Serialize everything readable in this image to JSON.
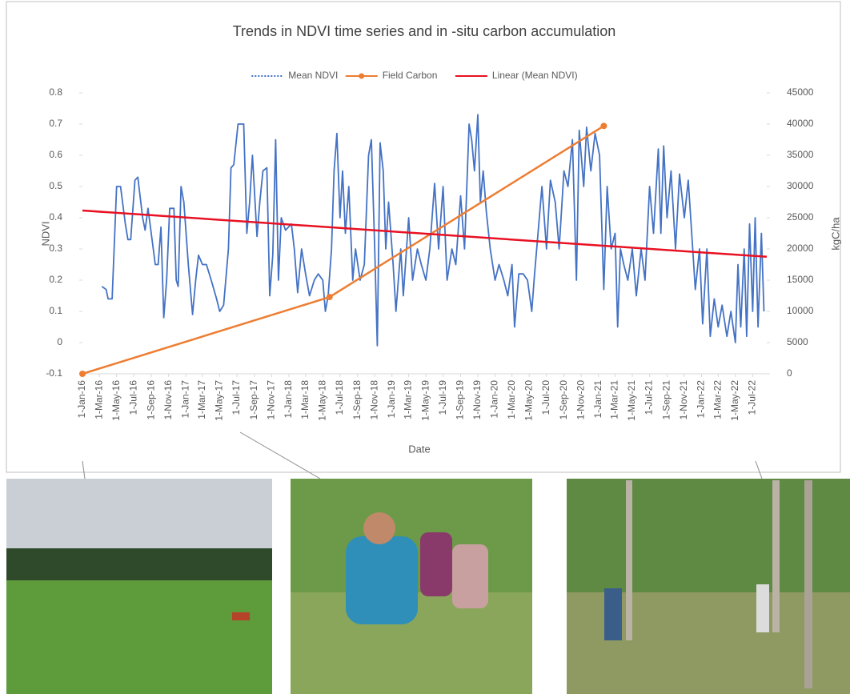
{
  "chart_data": {
    "type": "line",
    "title": "Trends in NDVI time series and in -situ carbon accumulation",
    "xlabel": "Date",
    "ylabel": "NDVI",
    "y2label": "kgC/ha",
    "legend": "top",
    "grid": false,
    "xlim": [
      "2016-01-01",
      "2022-08-20"
    ],
    "xticks": [
      {
        "value": "2016-01-01",
        "label": "1-Jan-16"
      },
      {
        "value": "2016-03-01",
        "label": "1-Mar-16"
      },
      {
        "value": "2016-05-01",
        "label": "1-May-16"
      },
      {
        "value": "2016-07-01",
        "label": "1-Jul-16"
      },
      {
        "value": "2016-09-01",
        "label": "1-Sep-16"
      },
      {
        "value": "2016-11-01",
        "label": "1-Nov-16"
      },
      {
        "value": "2017-01-01",
        "label": "1-Jan-17"
      },
      {
        "value": "2017-03-01",
        "label": "1-Mar-17"
      },
      {
        "value": "2017-05-01",
        "label": "1-May-17"
      },
      {
        "value": "2017-07-01",
        "label": "1-Jul-17"
      },
      {
        "value": "2017-09-01",
        "label": "1-Sep-17"
      },
      {
        "value": "2017-11-01",
        "label": "1-Nov-17"
      },
      {
        "value": "2018-01-01",
        "label": "1-Jan-18"
      },
      {
        "value": "2018-03-01",
        "label": "1-Mar-18"
      },
      {
        "value": "2018-05-01",
        "label": "1-May-18"
      },
      {
        "value": "2018-07-01",
        "label": "1-Jul-18"
      },
      {
        "value": "2018-09-01",
        "label": "1-Sep-18"
      },
      {
        "value": "2018-11-01",
        "label": "1-Nov-18"
      },
      {
        "value": "2019-01-01",
        "label": "1-Jan-19"
      },
      {
        "value": "2019-03-01",
        "label": "1-Mar-19"
      },
      {
        "value": "2019-05-01",
        "label": "1-May-19"
      },
      {
        "value": "2019-07-01",
        "label": "1-Jul-19"
      },
      {
        "value": "2019-09-01",
        "label": "1-Sep-19"
      },
      {
        "value": "2019-11-01",
        "label": "1-Nov-19"
      },
      {
        "value": "2020-01-01",
        "label": "1-Jan-20"
      },
      {
        "value": "2020-03-01",
        "label": "1-Mar-20"
      },
      {
        "value": "2020-05-01",
        "label": "1-May-20"
      },
      {
        "value": "2020-07-01",
        "label": "1-Jul-20"
      },
      {
        "value": "2020-09-01",
        "label": "1-Sep-20"
      },
      {
        "value": "2020-11-01",
        "label": "1-Nov-20"
      },
      {
        "value": "2021-01-01",
        "label": "1-Jan-21"
      },
      {
        "value": "2021-03-01",
        "label": "1-Mar-21"
      },
      {
        "value": "2021-05-01",
        "label": "1-May-21"
      },
      {
        "value": "2021-07-01",
        "label": "1-Jul-21"
      },
      {
        "value": "2021-09-01",
        "label": "1-Sep-21"
      },
      {
        "value": "2021-11-01",
        "label": "1-Nov-21"
      },
      {
        "value": "2022-01-01",
        "label": "1-Jan-22"
      },
      {
        "value": "2022-03-01",
        "label": "1-Mar-22"
      },
      {
        "value": "2022-05-01",
        "label": "1-May-22"
      },
      {
        "value": "2022-07-01",
        "label": "1-Jul-22"
      }
    ],
    "ylim": [
      -0.1,
      0.8
    ],
    "yticks": [
      -0.1,
      0,
      0.1,
      0.2,
      0.3,
      0.4,
      0.5,
      0.6,
      0.7,
      0.8
    ],
    "y2lim": [
      0,
      45000
    ],
    "y2ticks": [
      0,
      5000,
      10000,
      15000,
      20000,
      25000,
      30000,
      35000,
      40000,
      45000
    ],
    "series": [
      {
        "name": "Mean NDVI",
        "color": "#4472c4",
        "x": [
          "2016-03-10",
          "2016-03-25",
          "2016-04-01",
          "2016-04-15",
          "2016-05-01",
          "2016-05-15",
          "2016-06-01",
          "2016-06-10",
          "2016-06-20",
          "2016-07-05",
          "2016-07-15",
          "2016-08-01",
          "2016-08-10",
          "2016-08-20",
          "2016-09-05",
          "2016-09-15",
          "2016-09-25",
          "2016-10-05",
          "2016-10-15",
          "2016-10-25",
          "2016-11-05",
          "2016-11-20",
          "2016-11-28",
          "2016-12-05",
          "2016-12-15",
          "2016-12-25",
          "2017-01-10",
          "2017-01-25",
          "2017-02-05",
          "2017-02-15",
          "2017-03-01",
          "2017-03-15",
          "2017-04-01",
          "2017-04-20",
          "2017-05-01",
          "2017-05-15",
          "2017-06-01",
          "2017-06-10",
          "2017-06-20",
          "2017-07-05",
          "2017-07-25",
          "2017-08-05",
          "2017-08-15",
          "2017-08-25",
          "2017-09-10",
          "2017-09-20",
          "2017-10-01",
          "2017-10-15",
          "2017-10-25",
          "2017-11-05",
          "2017-11-15",
          "2017-11-25",
          "2017-12-05",
          "2017-12-20",
          "2018-01-10",
          "2018-01-20",
          "2018-02-01",
          "2018-02-15",
          "2018-03-01",
          "2018-03-15",
          "2018-04-01",
          "2018-04-15",
          "2018-05-01",
          "2018-05-10",
          "2018-05-20",
          "2018-06-01",
          "2018-06-10",
          "2018-06-20",
          "2018-07-01",
          "2018-07-10",
          "2018-07-20",
          "2018-08-01",
          "2018-08-15",
          "2018-08-25",
          "2018-09-10",
          "2018-09-25",
          "2018-10-10",
          "2018-10-20",
          "2018-11-01",
          "2018-11-10",
          "2018-11-20",
          "2018-12-01",
          "2018-12-10",
          "2018-12-20",
          "2019-01-05",
          "2019-01-15",
          "2019-02-01",
          "2019-02-10",
          "2019-03-01",
          "2019-03-15",
          "2019-04-01",
          "2019-04-15",
          "2019-05-01",
          "2019-05-15",
          "2019-06-01",
          "2019-06-15",
          "2019-07-01",
          "2019-07-15",
          "2019-08-01",
          "2019-08-15",
          "2019-09-01",
          "2019-09-15",
          "2019-10-01",
          "2019-10-10",
          "2019-10-20",
          "2019-11-01",
          "2019-11-10",
          "2019-11-20",
          "2019-12-01",
          "2019-12-15",
          "2020-01-01",
          "2020-01-15",
          "2020-02-01",
          "2020-02-15",
          "2020-03-01",
          "2020-03-10",
          "2020-03-25",
          "2020-04-10",
          "2020-04-25",
          "2020-05-10",
          "2020-05-20",
          "2020-06-01",
          "2020-06-15",
          "2020-07-01",
          "2020-07-15",
          "2020-08-01",
          "2020-08-15",
          "2020-09-01",
          "2020-09-15",
          "2020-10-01",
          "2020-10-15",
          "2020-10-25",
          "2020-11-10",
          "2020-11-20",
          "2020-12-05",
          "2020-12-20",
          "2021-01-05",
          "2021-01-20",
          "2021-02-01",
          "2021-02-15",
          "2021-03-01",
          "2021-03-10",
          "2021-03-20",
          "2021-04-01",
          "2021-04-15",
          "2021-05-01",
          "2021-05-15",
          "2021-06-01",
          "2021-06-15",
          "2021-07-01",
          "2021-07-15",
          "2021-08-01",
          "2021-08-10",
          "2021-08-20",
          "2021-09-01",
          "2021-09-15",
          "2021-10-01",
          "2021-10-15",
          "2021-11-01",
          "2021-11-15",
          "2021-12-01",
          "2021-12-10",
          "2021-12-25",
          "2022-01-05",
          "2022-01-20",
          "2022-02-01",
          "2022-02-15",
          "2022-03-01",
          "2022-03-15",
          "2022-04-01",
          "2022-04-15",
          "2022-05-01",
          "2022-05-10",
          "2022-05-20",
          "2022-06-01",
          "2022-06-10",
          "2022-06-20",
          "2022-07-01",
          "2022-07-10",
          "2022-07-20",
          "2022-08-01",
          "2022-08-10"
        ],
        "values": [
          0.18,
          0.17,
          0.14,
          0.14,
          0.5,
          0.5,
          0.38,
          0.33,
          0.33,
          0.52,
          0.53,
          0.4,
          0.36,
          0.43,
          0.32,
          0.25,
          0.25,
          0.37,
          0.08,
          0.2,
          0.43,
          0.43,
          0.2,
          0.18,
          0.5,
          0.45,
          0.25,
          0.09,
          0.2,
          0.28,
          0.25,
          0.25,
          0.2,
          0.14,
          0.1,
          0.12,
          0.3,
          0.56,
          0.57,
          0.7,
          0.7,
          0.35,
          0.45,
          0.6,
          0.34,
          0.45,
          0.55,
          0.56,
          0.15,
          0.28,
          0.65,
          0.2,
          0.4,
          0.36,
          0.38,
          0.3,
          0.16,
          0.3,
          0.22,
          0.15,
          0.2,
          0.22,
          0.2,
          0.1,
          0.15,
          0.3,
          0.55,
          0.67,
          0.4,
          0.55,
          0.35,
          0.5,
          0.2,
          0.3,
          0.2,
          0.25,
          0.6,
          0.65,
          0.3,
          -0.01,
          0.64,
          0.55,
          0.3,
          0.45,
          0.25,
          0.1,
          0.3,
          0.15,
          0.4,
          0.2,
          0.3,
          0.25,
          0.2,
          0.3,
          0.51,
          0.3,
          0.5,
          0.2,
          0.3,
          0.25,
          0.47,
          0.3,
          0.7,
          0.65,
          0.55,
          0.73,
          0.45,
          0.55,
          0.42,
          0.3,
          0.2,
          0.25,
          0.2,
          0.15,
          0.25,
          0.05,
          0.22,
          0.22,
          0.2,
          0.1,
          0.22,
          0.35,
          0.5,
          0.3,
          0.52,
          0.45,
          0.3,
          0.55,
          0.5,
          0.65,
          0.2,
          0.68,
          0.5,
          0.69,
          0.55,
          0.67,
          0.6,
          0.17,
          0.5,
          0.3,
          0.35,
          0.05,
          0.3,
          0.25,
          0.2,
          0.3,
          0.15,
          0.3,
          0.2,
          0.5,
          0.35,
          0.62,
          0.35,
          0.63,
          0.4,
          0.55,
          0.3,
          0.54,
          0.4,
          0.52,
          0.3,
          0.17,
          0.3,
          0.06,
          0.3,
          0.02,
          0.14,
          0.05,
          0.12,
          0.02,
          0.1,
          0.0,
          0.25,
          0.05,
          0.3,
          0.02,
          0.38,
          0.1,
          0.4,
          0.05,
          0.35,
          0.1
        ]
      },
      {
        "name": "Field Carbon",
        "color": "#ed7d31",
        "axis": "y2",
        "markers": true,
        "x": [
          "2016-01-01",
          "2018-05-25",
          "2021-01-20"
        ],
        "values": [
          0,
          12300,
          39700
        ]
      },
      {
        "name": "Linear (Mean NDVI)",
        "color": "#e81123",
        "x": [
          "2016-01-01",
          "2022-08-20"
        ],
        "values": [
          0.423,
          0.275
        ]
      }
    ]
  }
}
